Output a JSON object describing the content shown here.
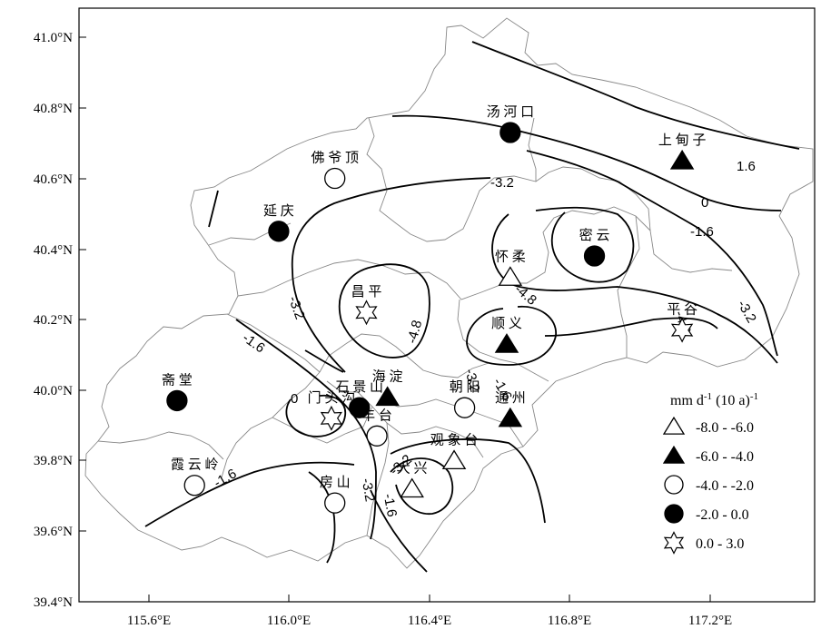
{
  "axes": {
    "y_ticks": [
      "41.0°N",
      "40.8°N",
      "40.6°N",
      "40.4°N",
      "40.2°N",
      "40.0°N",
      "39.8°N",
      "39.6°N",
      "39.4°N"
    ],
    "x_ticks": [
      "115.6°E",
      "116.0°E",
      "116.4°E",
      "116.8°E",
      "117.2°E"
    ]
  },
  "stations": [
    {
      "name": "汤 河 口",
      "lon": 116.63,
      "lat": 40.73,
      "symbol": "filled-circle"
    },
    {
      "name": "上 甸 子",
      "lon": 117.12,
      "lat": 40.65,
      "symbol": "filled-triangle"
    },
    {
      "name": "佛 爷 顶",
      "lon": 116.13,
      "lat": 40.6,
      "symbol": "open-circle"
    },
    {
      "name": "延 庆",
      "lon": 115.97,
      "lat": 40.45,
      "symbol": "filled-circle"
    },
    {
      "name": "密 云",
      "lon": 116.87,
      "lat": 40.38,
      "symbol": "filled-circle"
    },
    {
      "name": "怀 柔",
      "lon": 116.63,
      "lat": 40.32,
      "symbol": "open-triangle"
    },
    {
      "name": "昌 平",
      "lon": 116.22,
      "lat": 40.22,
      "symbol": "star"
    },
    {
      "name": "平 谷",
      "lon": 117.12,
      "lat": 40.17,
      "symbol": "star"
    },
    {
      "name": "顺 义",
      "lon": 116.62,
      "lat": 40.13,
      "symbol": "filled-triangle"
    },
    {
      "name": "海 淀",
      "lon": 116.28,
      "lat": 39.98,
      "symbol": "filled-triangle"
    },
    {
      "name": "斋 堂",
      "lon": 115.68,
      "lat": 39.97,
      "symbol": "filled-circle"
    },
    {
      "name": "石 景 山",
      "lon": 116.2,
      "lat": 39.95,
      "symbol": "filled-circle"
    },
    {
      "name": "朝 阳",
      "lon": 116.5,
      "lat": 39.95,
      "symbol": "open-circle"
    },
    {
      "name": "通 州",
      "lon": 116.63,
      "lat": 39.92,
      "symbol": "filled-triangle"
    },
    {
      "name": "门 头 沟",
      "lon": 116.12,
      "lat": 39.92,
      "symbol": "star"
    },
    {
      "name": "丰 台",
      "lon": 116.25,
      "lat": 39.87,
      "symbol": "open-circle"
    },
    {
      "name": "观 象 台",
      "lon": 116.47,
      "lat": 39.8,
      "symbol": "open-triangle"
    },
    {
      "name": "霞 云 岭",
      "lon": 115.73,
      "lat": 39.73,
      "symbol": "open-circle"
    },
    {
      "name": "大 兴",
      "lon": 116.35,
      "lat": 39.72,
      "symbol": "open-triangle"
    },
    {
      "name": "房 山",
      "lon": 116.13,
      "lat": 39.68,
      "symbol": "open-circle"
    }
  ],
  "contour_labels": [
    "-3.2",
    "1.6",
    "0",
    "-1.6",
    "-3.2",
    "-4.8",
    "-3.2",
    "-4.8",
    "-4.8",
    "-3.2",
    "-1.6",
    "0",
    "-3.2",
    "-1.6",
    "-1.6",
    "-3.2",
    "-1.6"
  ],
  "legend": {
    "unit_main": "mm d",
    "unit_sup1": "-1",
    "unit_mid": " (10 a)",
    "unit_sup2": "-1",
    "items": [
      {
        "symbol": "open-triangle",
        "label": "-8.0  -  -6.0"
      },
      {
        "symbol": "filled-triangle",
        "label": "-6.0  -  -4.0"
      },
      {
        "symbol": "open-circle",
        "label": "-4.0  -  -2.0"
      },
      {
        "symbol": "filled-circle",
        "label": "-2.0  -  0.0"
      },
      {
        "symbol": "star",
        "label": "0.0  -  3.0"
      }
    ]
  }
}
